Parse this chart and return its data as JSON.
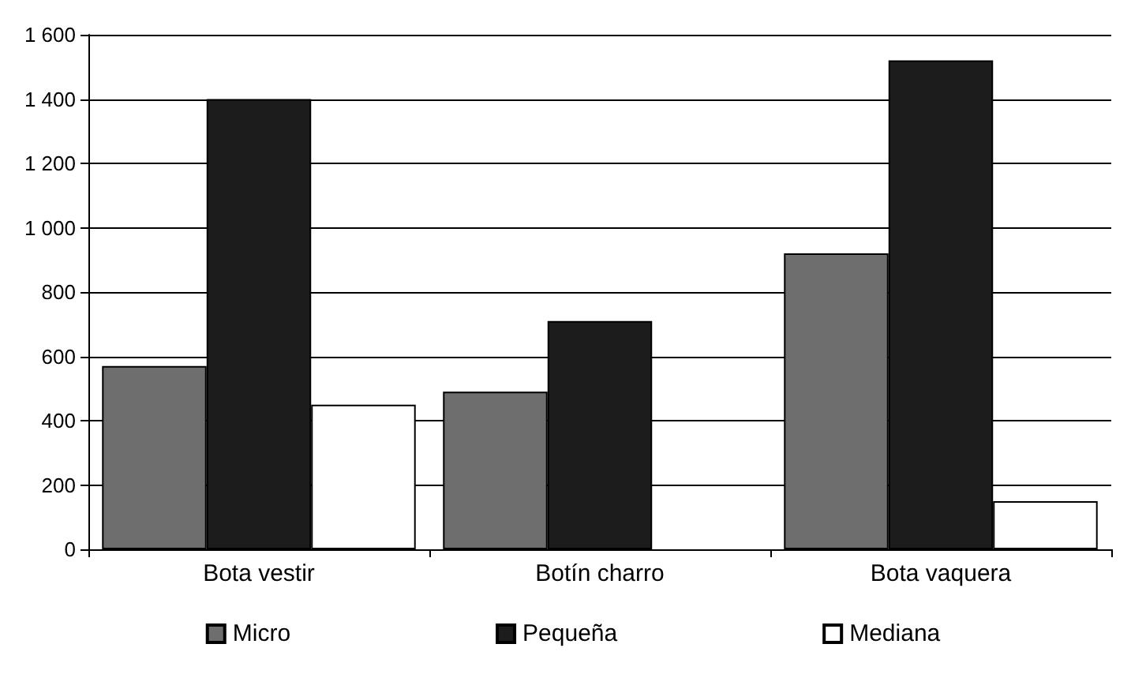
{
  "chart_data": {
    "type": "bar",
    "categories": [
      "Bota vestir",
      "Botín charro",
      "Bota vaquera"
    ],
    "series": [
      {
        "name": "Micro",
        "color": "#6e6e6e",
        "values": [
          570,
          490,
          920
        ]
      },
      {
        "name": "Pequeña",
        "color": "#1c1c1c",
        "values": [
          1400,
          710,
          1520
        ]
      },
      {
        "name": "Mediana",
        "color": "#ffffff",
        "values": [
          450,
          null,
          150
        ]
      }
    ],
    "ylim": [
      0,
      1600
    ],
    "yticks": [
      0,
      200,
      400,
      600,
      800,
      {
        "value": 1000,
        "label": "1 000"
      },
      {
        "value": 1200,
        "label": "1 200"
      },
      {
        "value": 1400,
        "label": "1 400"
      },
      {
        "value": 1600,
        "label": "1 600"
      }
    ],
    "grid": "y",
    "legend": "bottom"
  }
}
